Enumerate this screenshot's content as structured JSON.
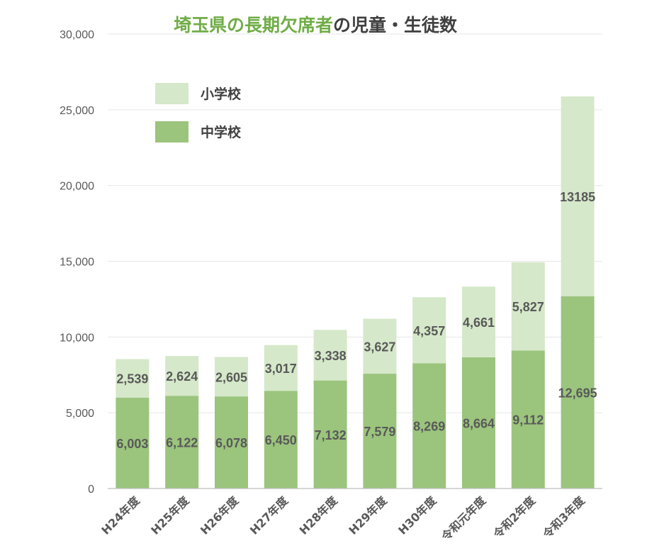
{
  "chart_data": {
    "type": "bar",
    "stacked": true,
    "title": "埼玉県の長期欠席者の児童・生徒数",
    "title_parts": [
      {
        "text": "埼玉県の長期欠席者",
        "color": "#70AD47"
      },
      {
        "text": "の児童・生徒数",
        "color": "#404040"
      }
    ],
    "categories": [
      "H24年度",
      "H25年度",
      "H26年度",
      "H27年度",
      "H28年度",
      "H29年度",
      "H30年度",
      "令和元年度",
      "令和2年度",
      "令和3年度"
    ],
    "series": [
      {
        "name": "中学校",
        "color": "#9BC47D",
        "values": [
          6003,
          6122,
          6078,
          6450,
          7132,
          7579,
          8269,
          8664,
          9112,
          12695
        ],
        "labels": [
          "6,003",
          "6,122",
          "6,078",
          "6,450",
          "7,132",
          "7,579",
          "8,269",
          "8,664",
          "9,112",
          "12,695"
        ]
      },
      {
        "name": "小学校",
        "color": "#D5E8C9",
        "values": [
          2539,
          2624,
          2605,
          3017,
          3338,
          3627,
          4357,
          4661,
          5827,
          13185
        ],
        "labels": [
          "2,539",
          "2,624",
          "2,605",
          "3,017",
          "3,338",
          "3,627",
          "4,357",
          "4,661",
          "5,827",
          "13185"
        ]
      }
    ],
    "legend": {
      "placement": "top-left",
      "order": [
        "小学校",
        "中学校"
      ]
    },
    "yticks": [
      0,
      5000,
      10000,
      15000,
      20000,
      25000,
      30000
    ],
    "ytick_labels": [
      "0",
      "5,000",
      "10,000",
      "15,000",
      "20,000",
      "25,000",
      "30,000"
    ],
    "ylim": [
      0,
      30000
    ],
    "grid": true,
    "grid_color": "#E6E6E6",
    "axis_color": "#BFBFBF",
    "xlabel": "",
    "ylabel": ""
  }
}
